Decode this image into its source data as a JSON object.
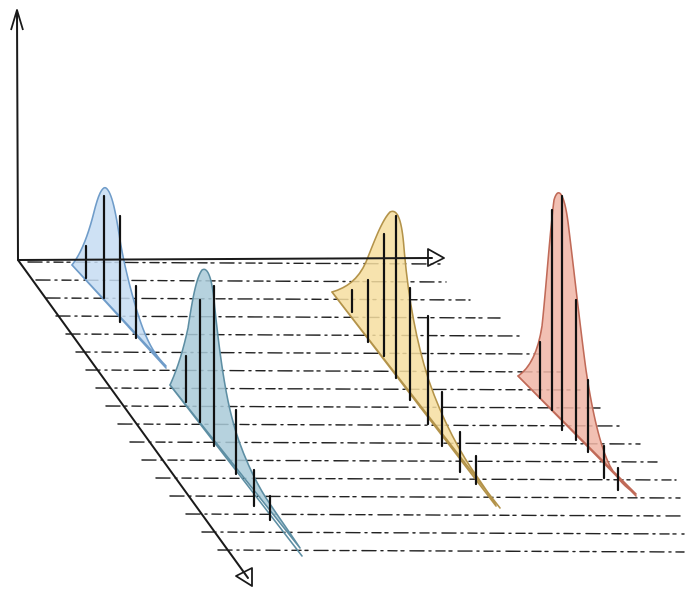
{
  "diagram": {
    "peaks": [
      {
        "name": "peak-blue",
        "fill": "#c6dcf2",
        "stroke": "#6f9cc9"
      },
      {
        "name": "peak-teal",
        "fill": "#a9cad8",
        "stroke": "#5d8ea3"
      },
      {
        "name": "peak-yellow",
        "fill": "#f6dea0",
        "stroke": "#b3934a"
      },
      {
        "name": "peak-red",
        "fill": "#f0b5a6",
        "stroke": "#c06a58"
      }
    ],
    "axis_color": "#1a1a1a",
    "grid_style": "dash-dot"
  }
}
